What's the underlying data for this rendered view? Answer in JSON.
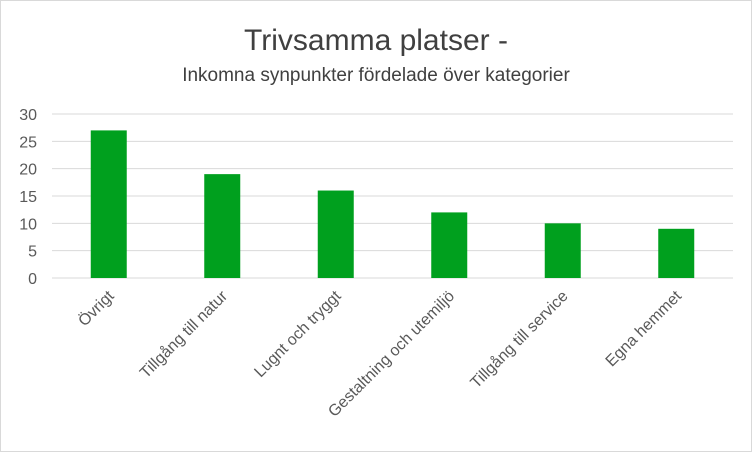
{
  "chart_data": {
    "type": "bar",
    "title": "Trivsamma platser -",
    "subtitle": "Inkomna synpunkter fördelade över kategorier",
    "categories": [
      "Övrigt",
      "Tillgång till natur",
      "Lugnt och tryggt",
      "Gestaltning och utemiljö",
      "Tillgång till service",
      "Egna hemmet"
    ],
    "values": [
      27,
      19,
      16,
      12,
      10,
      9
    ],
    "ylim": [
      0,
      30
    ],
    "yticks": [
      "0",
      "5",
      "10",
      "15",
      "20",
      "25",
      "30"
    ],
    "xlabel": "",
    "ylabel": "",
    "grid": true,
    "bar_color": "#00a01e",
    "grid_color": "#d9d9d9",
    "text_color": "#595959",
    "title_color": "#404040"
  }
}
